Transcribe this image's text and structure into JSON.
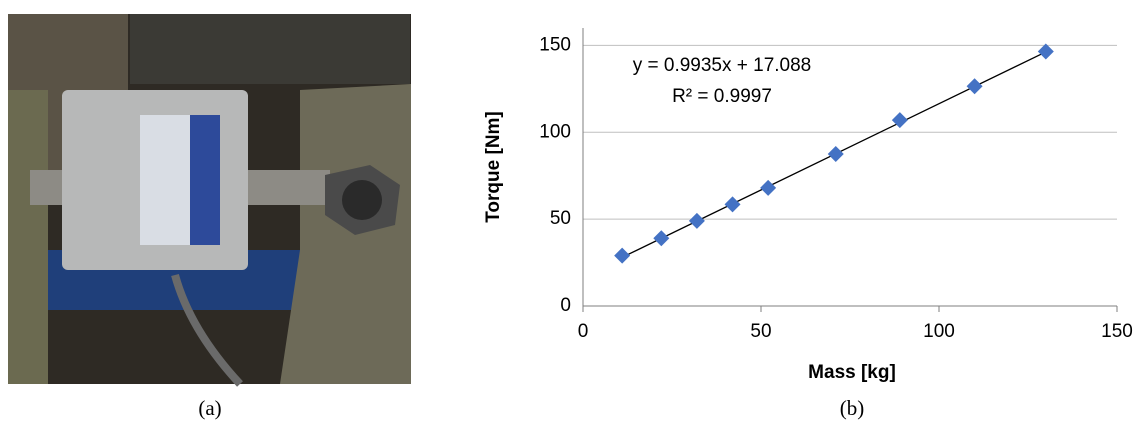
{
  "chart_data": {
    "type": "scatter",
    "xlabel": "Mass [kg]",
    "ylabel": "Torque [Nm]",
    "x": [
      11,
      22,
      32,
      42,
      52,
      71,
      89,
      110,
      130
    ],
    "series": [
      {
        "color": "#4472c4",
        "values": [
          29,
          39,
          49,
          58.5,
          68,
          87.5,
          107,
          126.5,
          146.5
        ]
      }
    ],
    "xlim": [
      0,
      150
    ],
    "xticks": [
      0,
      50,
      100,
      150
    ],
    "ylim": [
      0,
      160
    ],
    "yticks": [
      0,
      50,
      100,
      150
    ],
    "grid": true,
    "trendline": {
      "slope": 0.9935,
      "intercept": 17.088,
      "label": "y = 0.9935x + 17.088",
      "r2_label": "R² = 0.9997"
    }
  },
  "captions": [
    "(a)",
    "(b)"
  ]
}
